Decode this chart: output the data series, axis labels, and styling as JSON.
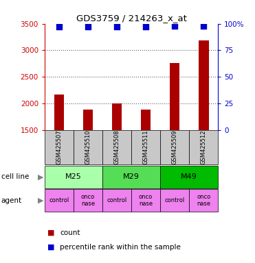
{
  "title": "GDS3759 / 214263_x_at",
  "samples": [
    "GSM425507",
    "GSM425510",
    "GSM425508",
    "GSM425511",
    "GSM425509",
    "GSM425512"
  ],
  "counts": [
    2175,
    1890,
    2000,
    1890,
    2760,
    3190
  ],
  "percentile_ranks": [
    97,
    97,
    97,
    97,
    98,
    98
  ],
  "ylim_left": [
    1500,
    3500
  ],
  "ylim_right": [
    0,
    100
  ],
  "yticks_left": [
    1500,
    2000,
    2500,
    3000,
    3500
  ],
  "yticks_right": [
    0,
    25,
    50,
    75,
    100
  ],
  "cell_line_data": [
    {
      "label": "M25",
      "start": 0,
      "end": 1,
      "color": "#AAFFAA"
    },
    {
      "label": "M29",
      "start": 2,
      "end": 3,
      "color": "#55DD55"
    },
    {
      "label": "M49",
      "start": 4,
      "end": 5,
      "color": "#00BB00"
    }
  ],
  "agents": [
    "control",
    "onconase",
    "control",
    "onconase",
    "control",
    "onconase"
  ],
  "agent_color": "#EE82EE",
  "bar_color": "#AA0000",
  "dot_color": "#0000CC",
  "sample_box_color": "#C8C8C8",
  "label_color_left": "#CC0000",
  "label_color_right": "#0000CC",
  "grid_color": "#606060",
  "bar_width": 0.35,
  "dot_size": 40
}
